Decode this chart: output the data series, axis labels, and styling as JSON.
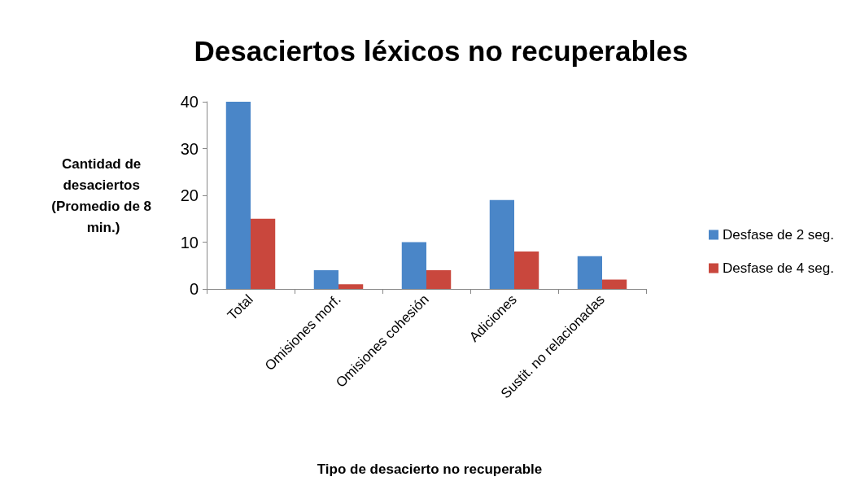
{
  "chart_data": {
    "type": "bar",
    "title": "Desaciertos léxicos no recuperables",
    "xlabel": "Tipo de desacierto no recuperable",
    "ylabel": "Cantidad de desaciertos (Promedio de 8 min.)",
    "categories": [
      "Total",
      "Omisiones morf.",
      "Omisiones cohesión",
      "Adiciones",
      "Sustit. no relacionadas"
    ],
    "series": [
      {
        "name": "Desfase de 2 seg.",
        "color": "#4a86c8",
        "values": [
          40,
          4,
          10,
          19,
          7
        ]
      },
      {
        "name": "Desfase de 4 seg.",
        "color": "#c9473d",
        "values": [
          15,
          1,
          4,
          8,
          2
        ]
      }
    ],
    "ylim": [
      0,
      40
    ],
    "yticks": [
      0,
      10,
      20,
      30,
      40
    ],
    "grid": false,
    "legend": "right"
  }
}
